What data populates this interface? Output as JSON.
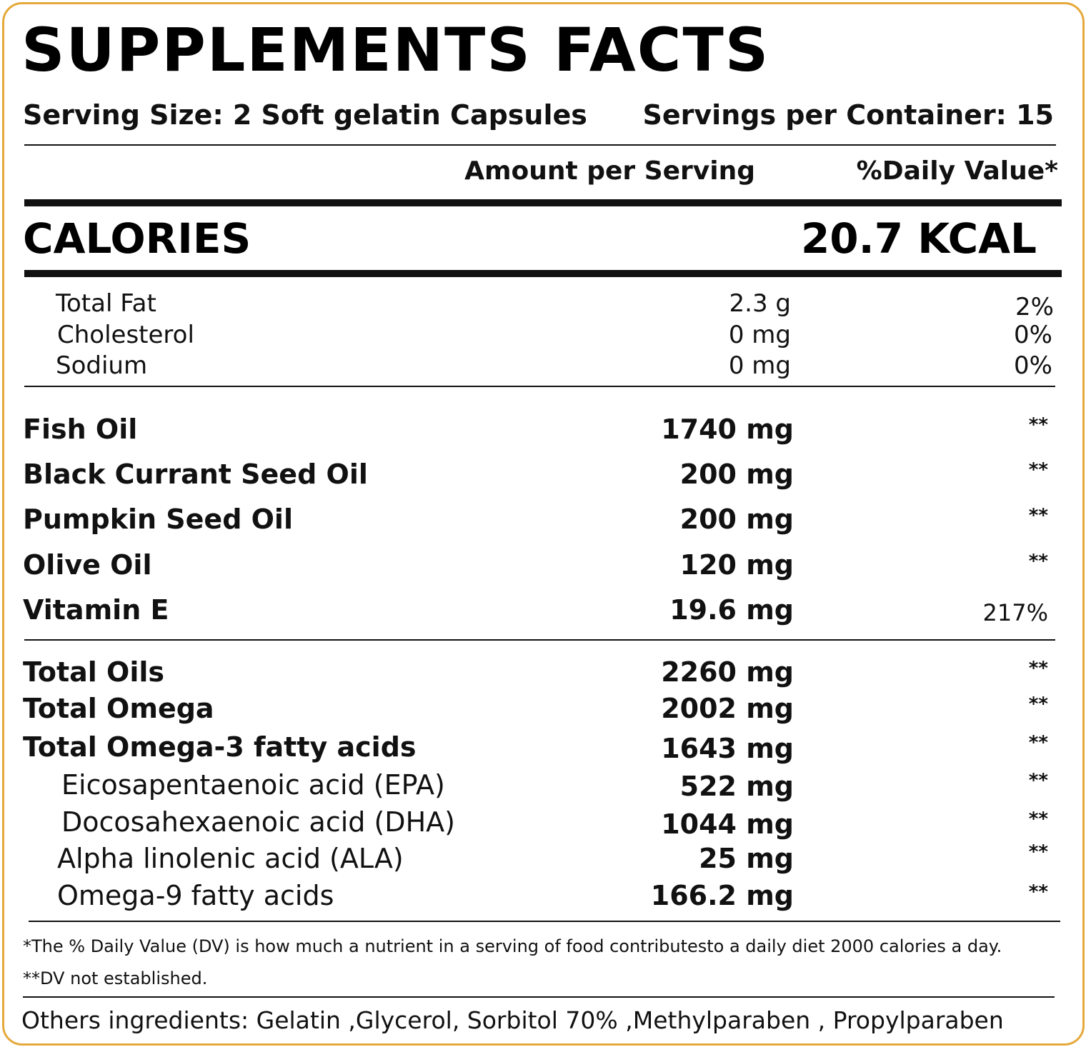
{
  "title": "SUPPLEMENTS FACTS",
  "serving_size": "Serving Size: 2 Soft gelatin Capsules",
  "servings_per_container": "Servings per Container: 15",
  "col_amount": "Amount per Serving",
  "col_dv": "%Daily Value*",
  "calories_label": "CALORIES",
  "calories_value": "20.7 KCAL",
  "basic_nutrients": [
    {
      "name": "Total Fat",
      "amount": "2.3 g",
      "dv": "2%"
    },
    {
      "name": "Cholesterol",
      "amount": "0 mg",
      "dv": "0%"
    },
    {
      "name": "Sodium",
      "amount": "0 mg",
      "dv": "0%"
    }
  ],
  "oils": [
    {
      "name": "Fish Oil",
      "amount": "1740 mg",
      "dv": "**"
    },
    {
      "name": "Black Currant Seed Oil",
      "amount": "200 mg",
      "dv": "**"
    },
    {
      "name": "Pumpkin Seed Oil",
      "amount": "200 mg",
      "dv": "**"
    },
    {
      "name": "Olive Oil",
      "amount": "120 mg",
      "dv": "**"
    },
    {
      "name": "Vitamin E",
      "amount": "19.6 mg",
      "dv": "217%"
    }
  ],
  "totals": [
    {
      "name": "Total Oils",
      "amount": "2260 mg",
      "dv": "**"
    },
    {
      "name": "Total Omega",
      "amount": "2002 mg",
      "dv": "**"
    },
    {
      "name": "Total Omega-3 fatty acids",
      "amount": "1643 mg",
      "dv": "**"
    },
    {
      "name": "Eicosapentaenoic acid (EPA)",
      "amount": "522 mg",
      "dv": "**"
    },
    {
      "name": "Docosahexaenoic acid (DHA)",
      "amount": "1044 mg",
      "dv": "**"
    },
    {
      "name": "Alpha linolenic acid (ALA)",
      "amount": "25 mg",
      "dv": "**"
    },
    {
      "name": "Omega-9 fatty acids",
      "amount": "166.2 mg",
      "dv": "**"
    }
  ],
  "footnote_1": "*The % Daily Value (DV) is how much a nutrient in a serving of food contributesto a daily diet 2000 calories a day.",
  "footnote_2": "**DV not established.",
  "other_ingredients": "Others ingredients: Gelatin ,Glycerol, Sorbitol 70% ,Methylparaben , Propylparaben",
  "colors": {
    "border": "#e5a93b",
    "text": "#111111",
    "background": "#ffffff"
  }
}
